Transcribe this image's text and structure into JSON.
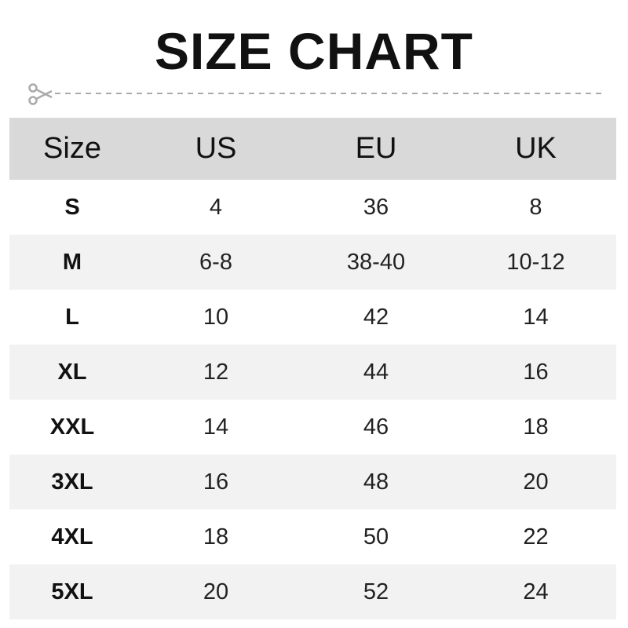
{
  "title": "SIZE CHART",
  "colors": {
    "header_bg": "#d9d9d9",
    "alt_row_bg": "#f2f2f2",
    "cutline": "#aaaaaa"
  },
  "icons": {
    "cutline": "scissors-icon"
  },
  "table": {
    "headers": [
      "Size",
      "US",
      "EU",
      "UK"
    ],
    "rows": [
      [
        "S",
        "4",
        "36",
        "8"
      ],
      [
        "M",
        "6-8",
        "38-40",
        "10-12"
      ],
      [
        "L",
        "10",
        "42",
        "14"
      ],
      [
        "XL",
        "12",
        "44",
        "16"
      ],
      [
        "XXL",
        "14",
        "46",
        "18"
      ],
      [
        "3XL",
        "16",
        "48",
        "20"
      ],
      [
        "4XL",
        "18",
        "50",
        "22"
      ],
      [
        "5XL",
        "20",
        "52",
        "24"
      ]
    ]
  }
}
